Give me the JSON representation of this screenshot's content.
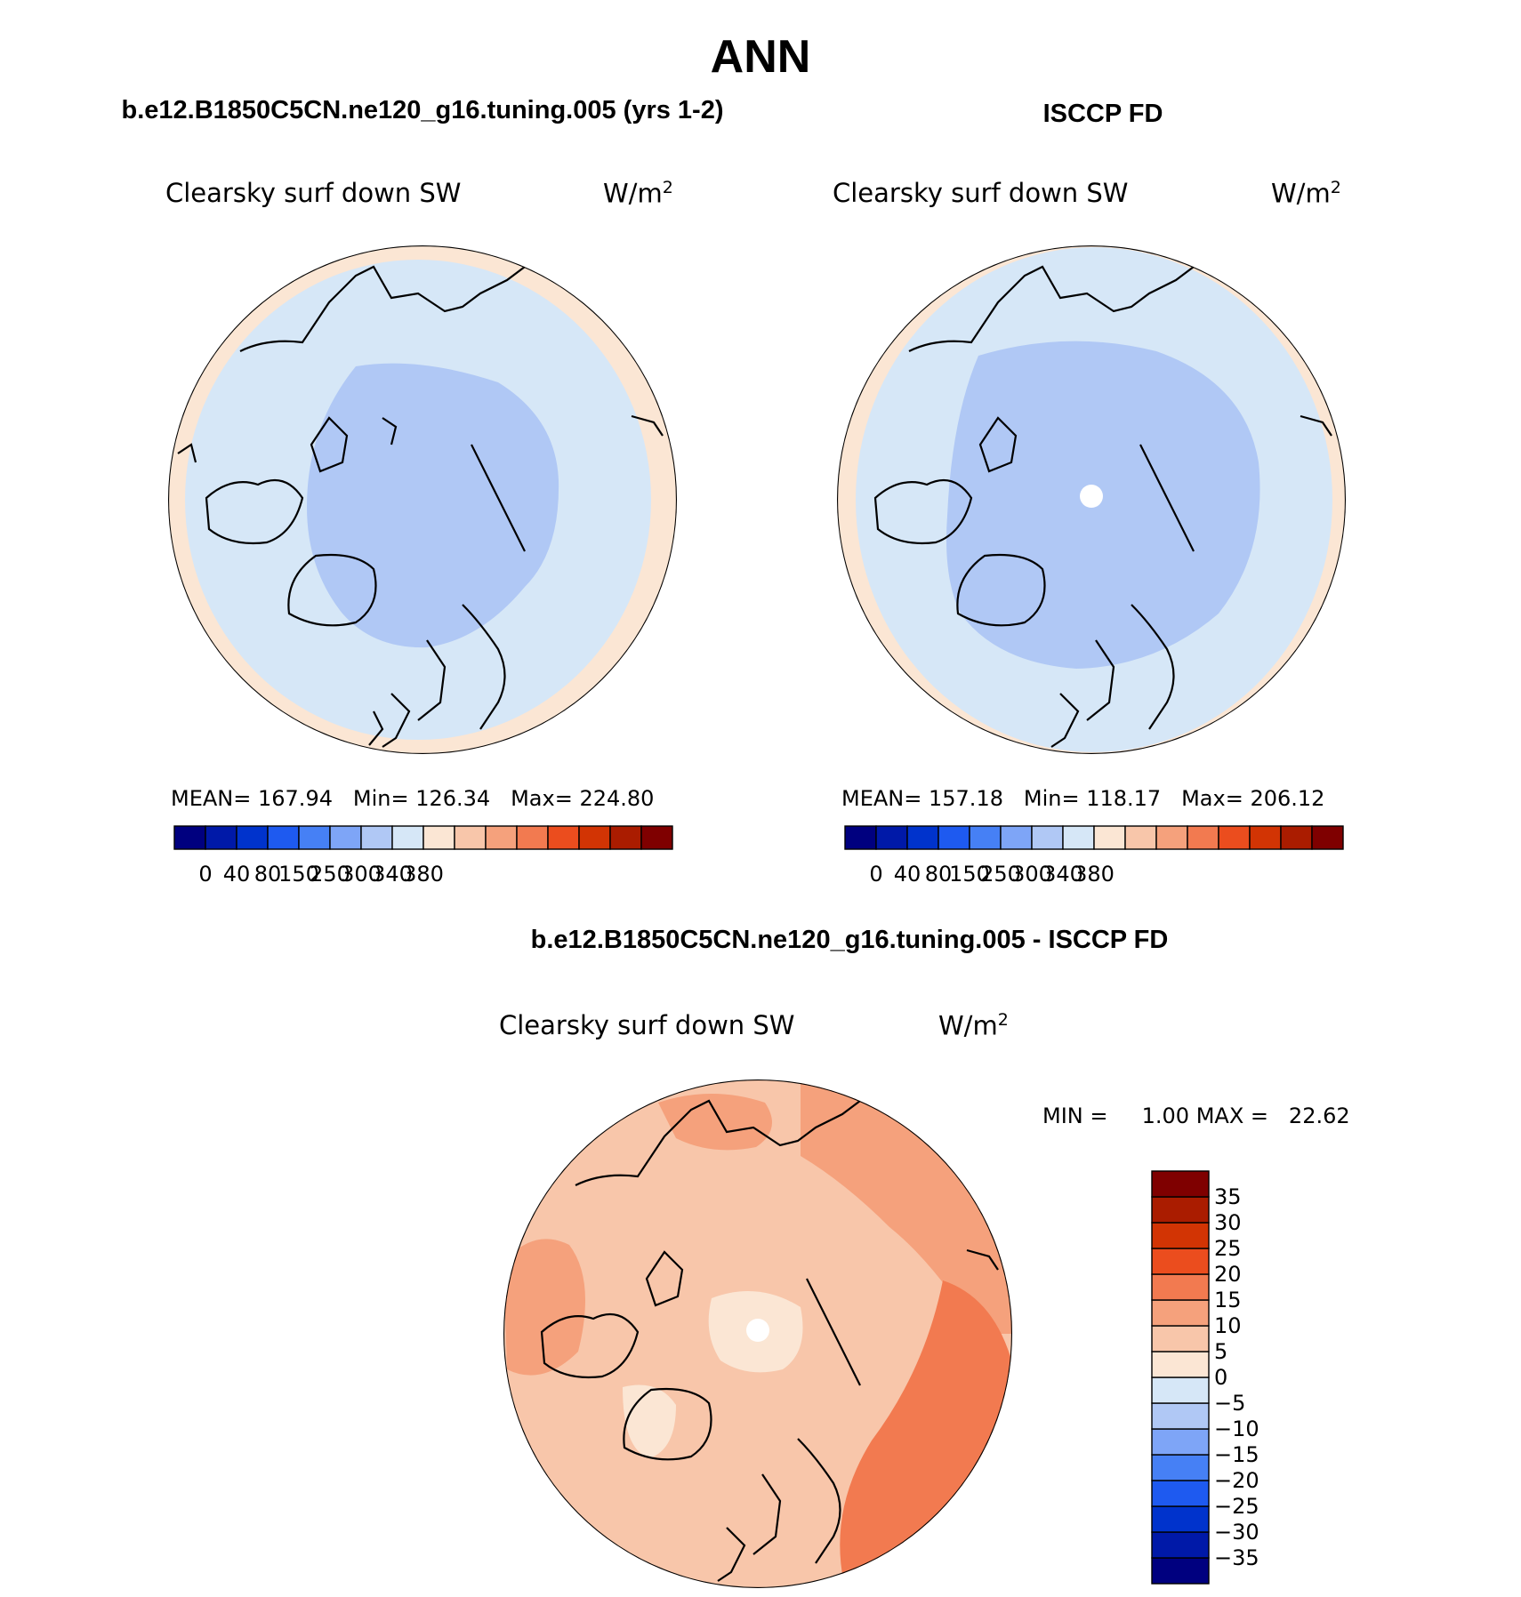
{
  "page": {
    "main_title": "ANN"
  },
  "panels": [
    {
      "case_title": "b.e12.B1850C5CN.ne120_g16.tuning.005 (yrs 1-2)",
      "variable": "Clearsky surf down SW",
      "units_base": "W/m",
      "units_exp": "2",
      "stats": {
        "mean_label": "MEAN=",
        "mean": "167.94",
        "min_label": "Min=",
        "min": "126.34",
        "max_label": "Max=",
        "max": "224.80"
      }
    },
    {
      "case_title": "ISCCP FD",
      "variable": "Clearsky surf down SW",
      "units_base": "W/m",
      "units_exp": "2",
      "stats": {
        "mean_label": "MEAN=",
        "mean": "157.18",
        "min_label": "Min=",
        "min": "118.17",
        "max_label": "Max=",
        "max": "206.12"
      }
    },
    {
      "case_title": "b.e12.B1850C5CN.ne120_g16.tuning.005 - ISCCP FD",
      "variable": "Clearsky surf down SW",
      "units_base": "W/m",
      "units_exp": "2",
      "stats": {
        "min_label": "MIN =",
        "min": "1.00",
        "max_label": "MAX =",
        "max": "22.62"
      }
    }
  ],
  "colorbars": {
    "horizontal": {
      "colors": [
        "#00007f",
        "#0019a8",
        "#0033cc",
        "#1e5af0",
        "#4680f5",
        "#7ea5f7",
        "#b0c8f5",
        "#d6e7f7",
        "#fbe6d4",
        "#f8c6aa",
        "#f5a17c",
        "#f27a50",
        "#eb4d1e",
        "#d23404",
        "#aa1c00",
        "#7f0000"
      ],
      "tick_labels": [
        "0",
        "40",
        "80",
        "150",
        "250",
        "300",
        "340",
        "380"
      ]
    },
    "vertical": {
      "colors": [
        "#00007f",
        "#0019a8",
        "#0033cc",
        "#1e5af0",
        "#4680f5",
        "#7ea5f7",
        "#b0c8f5",
        "#d6e7f7",
        "#fbe6d4",
        "#f8c6aa",
        "#f5a17c",
        "#f27a50",
        "#eb4d1e",
        "#d23404",
        "#aa1c00",
        "#7f0000"
      ],
      "tick_labels": [
        "35",
        "30",
        "25",
        "20",
        "15",
        "10",
        "5",
        "0",
        "−5",
        "−10",
        "−15",
        "−20",
        "−25",
        "−30",
        "−35"
      ]
    }
  },
  "chart_data": [
    {
      "type": "heatmap",
      "projection": "north polar stereographic",
      "title": "b.e12.B1850C5CN.ne120_g16.tuning.005 (yrs 1-2)",
      "variable": "Clearsky surf down SW",
      "units": "W/m2",
      "mean": 167.94,
      "min": 126.34,
      "max": 224.8,
      "contour_levels": [
        0,
        40,
        80,
        150,
        250,
        300,
        340,
        380
      ]
    },
    {
      "type": "heatmap",
      "projection": "north polar stereographic",
      "title": "ISCCP FD",
      "variable": "Clearsky surf down SW",
      "units": "W/m2",
      "mean": 157.18,
      "min": 118.17,
      "max": 206.12,
      "contour_levels": [
        0,
        40,
        80,
        150,
        250,
        300,
        340,
        380
      ]
    },
    {
      "type": "heatmap",
      "projection": "north polar stereographic",
      "title": "b.e12.B1850C5CN.ne120_g16.tuning.005 - ISCCP FD",
      "variable": "Clearsky surf down SW",
      "units": "W/m2",
      "min": 1.0,
      "max": 22.62,
      "contour_levels": [
        -35,
        -30,
        -25,
        -20,
        -15,
        -10,
        -5,
        0,
        5,
        10,
        15,
        20,
        25,
        30,
        35
      ]
    }
  ]
}
